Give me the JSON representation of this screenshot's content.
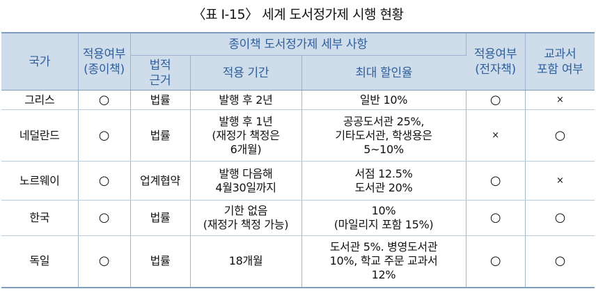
{
  "title": "〈표 Ⅰ-15〉 세계 도서정가제 시행 현황",
  "headers": {
    "country": "국가",
    "apply_paper": "적용여부\n(종이책)",
    "paper_detail": "종이책 도서정가제 세부 사항",
    "legal_basis": "법적\n근거",
    "period": "적용 기간",
    "max_discount": "최대 할인율",
    "apply_ebook": "적용여부\n(전자책)",
    "textbook": "교과서\n포함 여부"
  },
  "rows": [
    {
      "country": "그리스",
      "paper": "○",
      "basis": "법률",
      "period": "발행 후 2년",
      "discount": "일반 10%",
      "ebook": "○",
      "textbook": "×"
    },
    {
      "country": "네덜란드",
      "paper": "○",
      "basis": "법률",
      "period": "발행 후 1년\n(재정가 책정은\n6개월)",
      "discount": "공공도서관 25%,\n기타도서관, 학생용은\n5~10%",
      "ebook": "×",
      "textbook": "○"
    },
    {
      "country": "노르웨이",
      "paper": "○",
      "basis": "업계협약",
      "period": "발행 다음해\n4월30일까지",
      "discount": "서점 12.5%\n도서관 20%",
      "ebook": "○",
      "textbook": "×"
    },
    {
      "country": "한국",
      "paper": "○",
      "basis": "법률",
      "period": "기한 없음\n(재정가 책정 가능)",
      "discount": "10%\n(마일리지 포함 15%)",
      "ebook": "○",
      "textbook": "○"
    },
    {
      "country": "독일",
      "paper": "○",
      "basis": "법률",
      "period": "18개월",
      "discount": "도서관 5%. 병영도서관\n10%, 학교 주문 교과서\n12%",
      "ebook": "○",
      "textbook": "○"
    }
  ]
}
